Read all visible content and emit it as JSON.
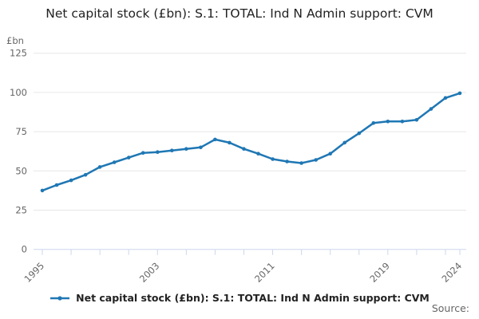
{
  "chart_data": {
    "type": "line",
    "title": "Net capital stock (£bn): S.1: TOTAL: Ind N Admin support: CVM",
    "y_unit_label": "£bn",
    "x": [
      1995,
      1996,
      1997,
      1998,
      1999,
      2000,
      2001,
      2002,
      2003,
      2004,
      2005,
      2006,
      2007,
      2008,
      2009,
      2010,
      2011,
      2012,
      2013,
      2014,
      2015,
      2016,
      2017,
      2018,
      2019,
      2020,
      2021,
      2022,
      2023,
      2024
    ],
    "series": [
      {
        "name": "Net capital stock (£bn): S.1: TOTAL: Ind N Admin support: CVM",
        "values": [
          37.5,
          41,
          44,
          47.5,
          52.5,
          55.5,
          58.5,
          61.5,
          62,
          63,
          64,
          65,
          70,
          68,
          64,
          61,
          57.5,
          56,
          55,
          57,
          61,
          68,
          74,
          80.5,
          81.5,
          81.5,
          82.5,
          89.5,
          96.5,
          99.5
        ]
      }
    ],
    "ylim": [
      0,
      125
    ],
    "yticks": [
      0,
      25,
      50,
      75,
      100,
      125
    ],
    "xticks": [
      1995,
      1997,
      1999,
      2001,
      2003,
      2005,
      2007,
      2009,
      2011,
      2013,
      2015,
      2017,
      2019,
      2021,
      2023,
      2024
    ],
    "xtick_labels_shown": [
      1995,
      2003,
      2011,
      2019,
      2024
    ],
    "grid": true,
    "legend_position": "bottom",
    "line_color": "#1f77b4",
    "grid_color": "#e6e6e6",
    "axis_color": "#ccd6eb",
    "label_color": "#666666",
    "title_color": "#222222"
  },
  "legend": {
    "label": "Net capital stock (£bn): S.1: TOTAL: Ind N Admin support: CVM"
  },
  "footer": {
    "source_label": "Source:"
  }
}
